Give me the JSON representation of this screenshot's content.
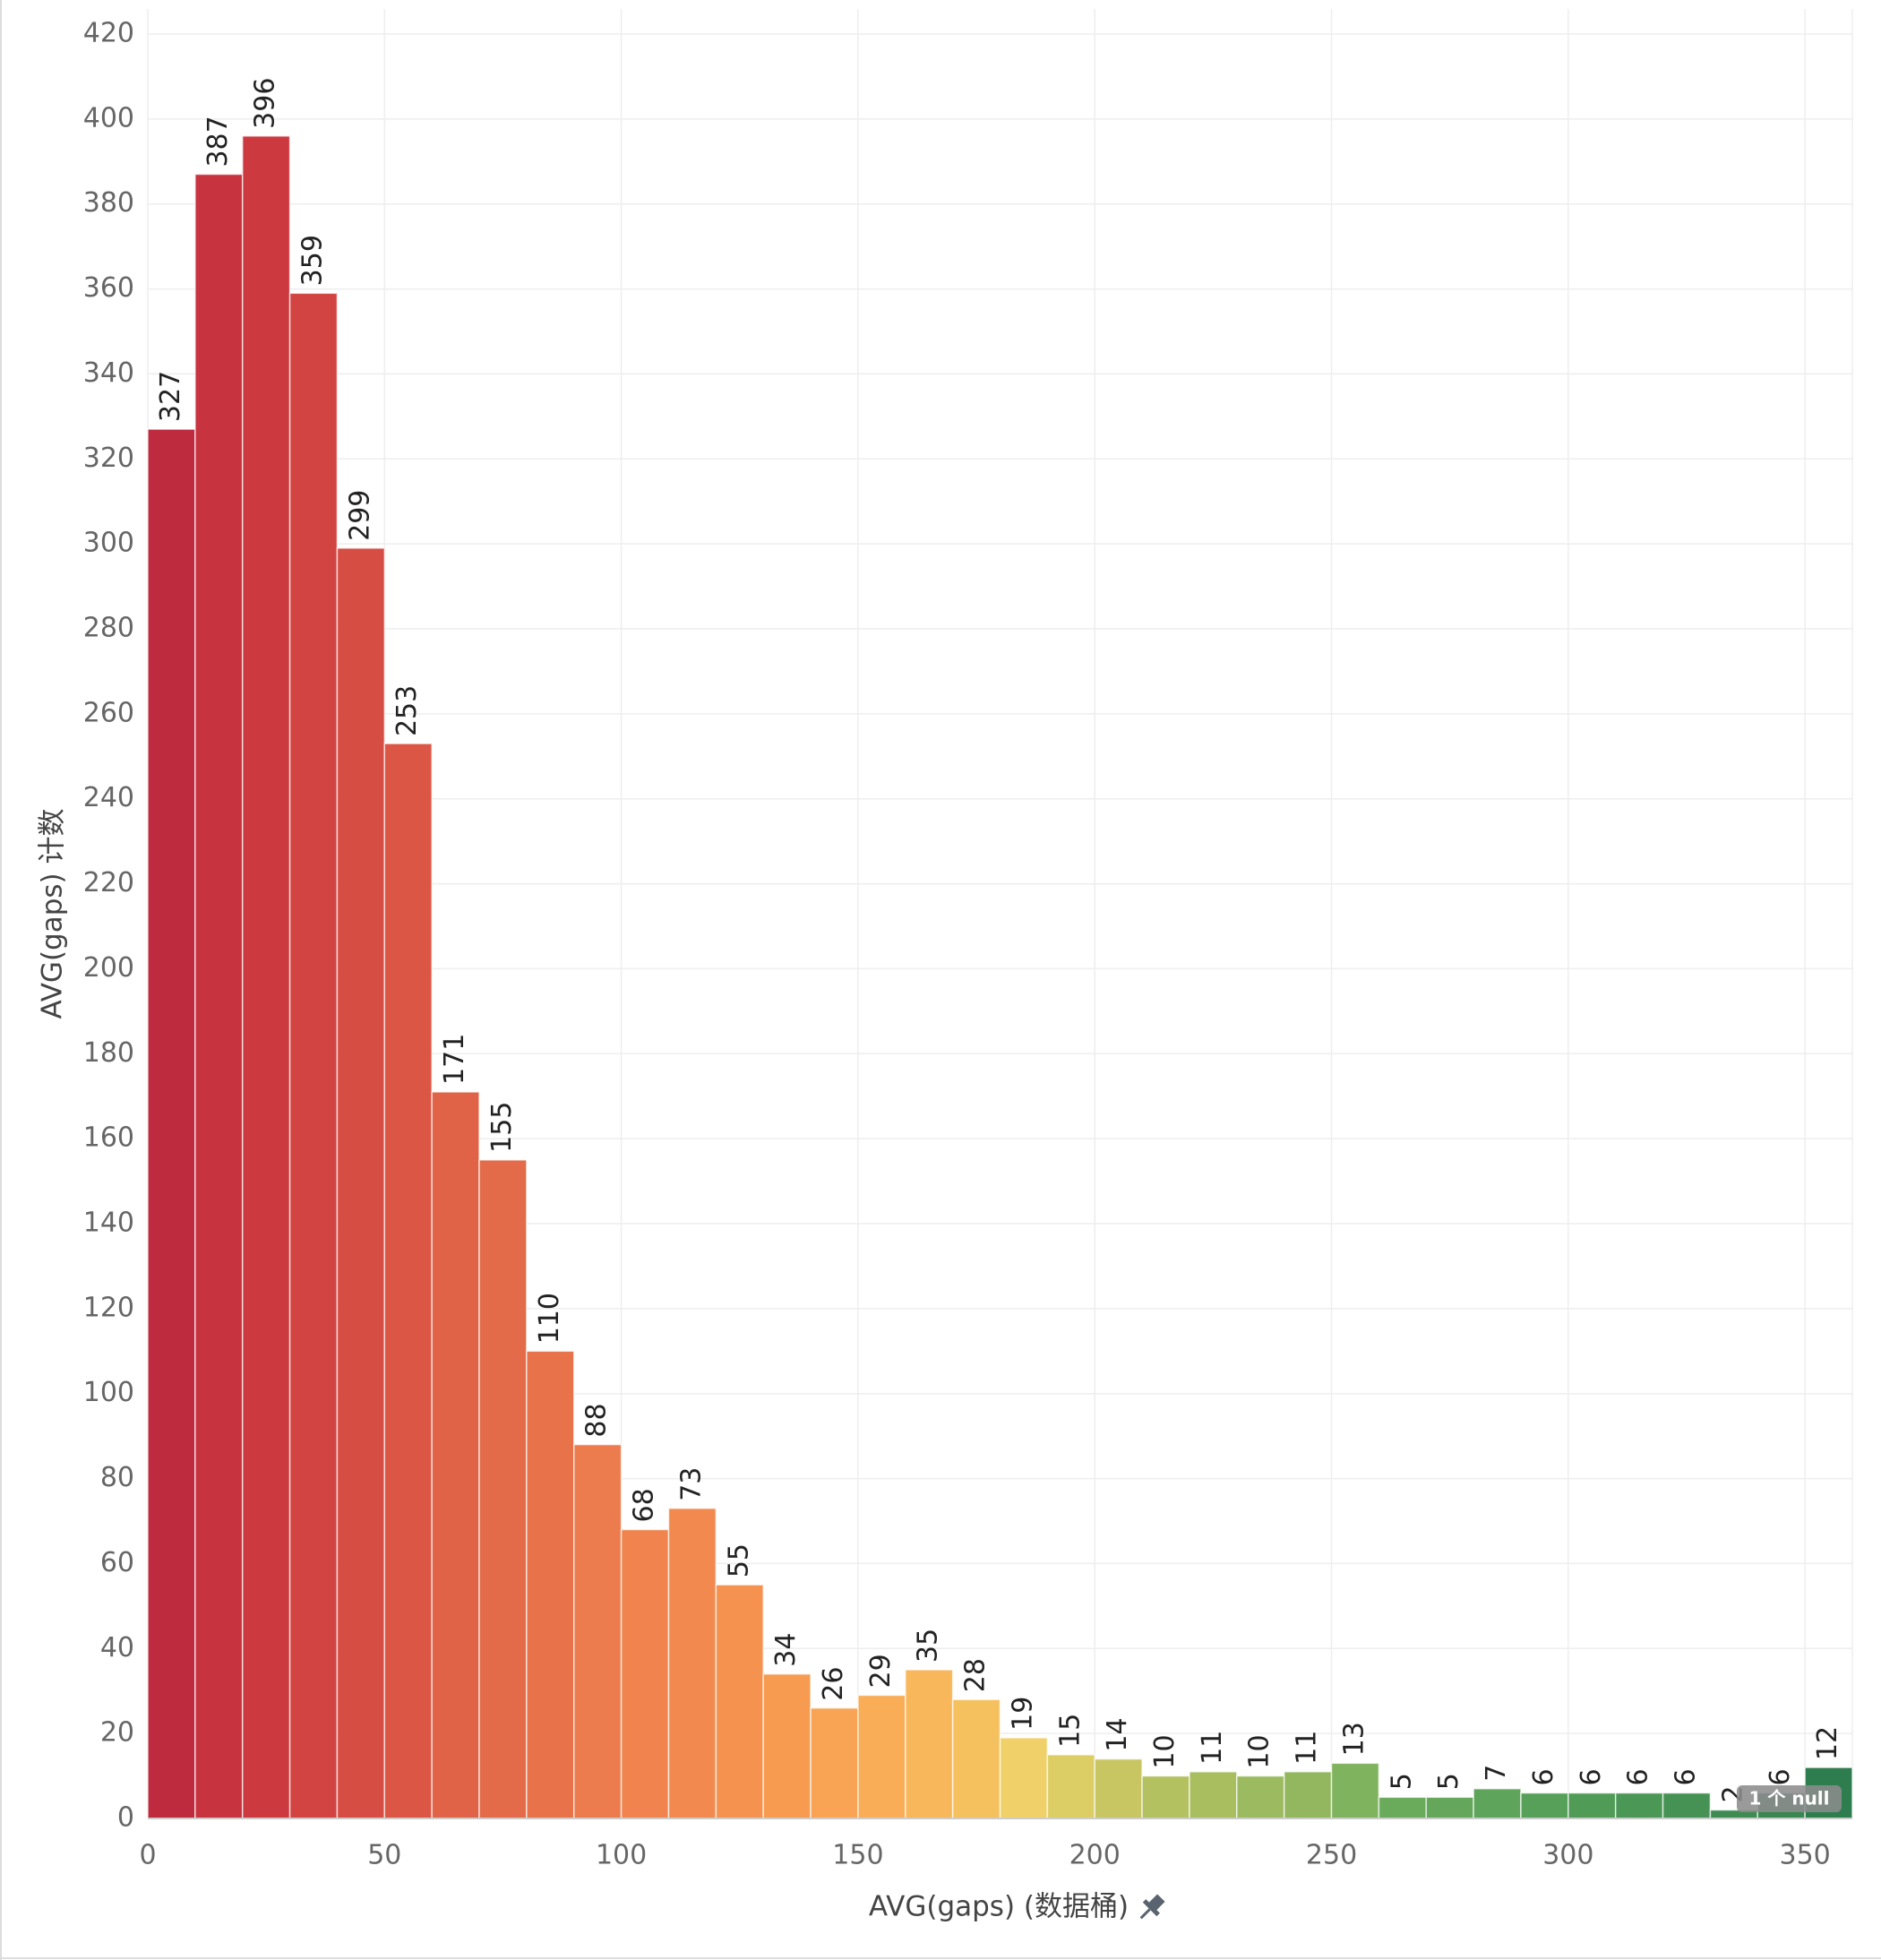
{
  "chart_data": {
    "type": "bar",
    "xlabel": "AVG(gaps) (数据桶)",
    "ylabel": "AVG(gaps) 计数",
    "bin_width": 10,
    "x_start": 0,
    "xlim": [
      0,
      360
    ],
    "ylim": [
      0,
      420
    ],
    "x_ticks": [
      0,
      50,
      100,
      150,
      200,
      250,
      300,
      350
    ],
    "y_ticks": [
      0,
      20,
      40,
      60,
      80,
      100,
      120,
      140,
      160,
      180,
      200,
      220,
      240,
      260,
      280,
      300,
      320,
      340,
      360,
      380,
      400,
      420
    ],
    "values": [
      327,
      387,
      396,
      359,
      299,
      253,
      171,
      155,
      110,
      88,
      68,
      73,
      55,
      34,
      26,
      29,
      35,
      28,
      19,
      15,
      14,
      10,
      11,
      10,
      11,
      13,
      5,
      5,
      7,
      6,
      6,
      6,
      6,
      2,
      6,
      12
    ],
    "colors": [
      "#be2a3e",
      "#c7333f",
      "#cc3a40",
      "#d14442",
      "#d64d43",
      "#db5645",
      "#e06347",
      "#e36b49",
      "#e8724a",
      "#ec7b4d",
      "#f0834e",
      "#f28a4f",
      "#f6924f",
      "#f79b51",
      "#f9a454",
      "#faad57",
      "#f8b75b",
      "#f5c15f",
      "#f0d169",
      "#dccd65",
      "#c8c662",
      "#b4c160",
      "#a8be5f",
      "#9cba5f",
      "#92b75e",
      "#80b35d",
      "#6aab5b",
      "#64a75a",
      "#5ea45a",
      "#56a059",
      "#509c57",
      "#4a9756",
      "#469254",
      "#3f8c52",
      "#388650",
      "#2e7d4e"
    ],
    "grid": true,
    "null_indicator": "1 个 null"
  }
}
